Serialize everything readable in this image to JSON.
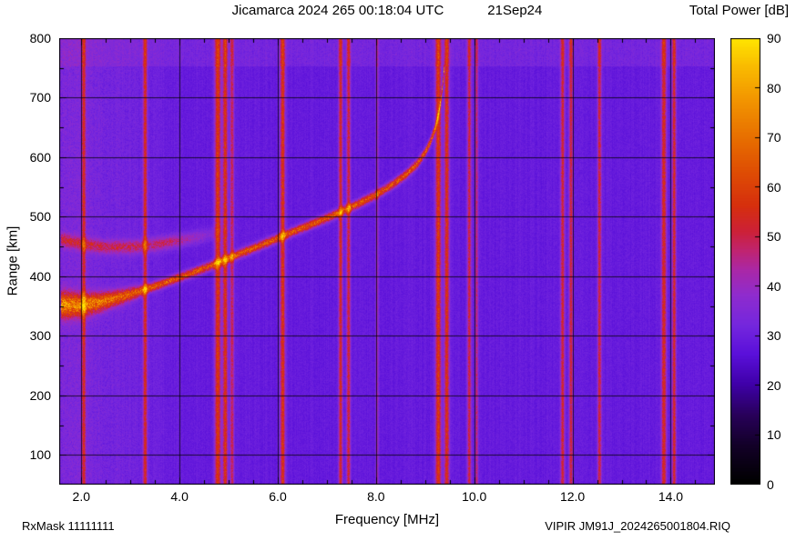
{
  "header": {
    "title": "Jicamarca 2024 265 00:18:04 UTC",
    "date": "21Sep24",
    "colorbar_title": "Total Power [dB]"
  },
  "footer": {
    "rxmask": "RxMask 11111111",
    "file": "VIPIR  JM91J_2024265001804.RIQ"
  },
  "chart_data": {
    "type": "heatmap",
    "title": "Jicamarca 2024 265 00:18:04 UTC",
    "date_label": "21Sep24",
    "xlabel": "Frequency [MHz]",
    "ylabel": "Range [km]",
    "xlim": [
      1.55,
      14.9
    ],
    "ylim": [
      50,
      800
    ],
    "x_major_ticks": [
      2,
      4,
      6,
      8,
      10,
      12,
      14
    ],
    "x_tick_labels": [
      "2.0",
      "4.0",
      "6.0",
      "8.0",
      "10.0",
      "12.0",
      "14.0"
    ],
    "x_minor_step": 0.5,
    "y_major_ticks": [
      100,
      200,
      300,
      400,
      500,
      600,
      700,
      800
    ],
    "y_minor_step": 50,
    "grid": true,
    "colorbar": {
      "label": "Total Power [dB]",
      "min": 0,
      "max": 90,
      "ticks": [
        0,
        10,
        20,
        30,
        40,
        50,
        60,
        70,
        80,
        90
      ]
    },
    "palette": [
      {
        "db": 0,
        "color": "#000000"
      },
      {
        "db": 8,
        "color": "#14002a"
      },
      {
        "db": 14,
        "color": "#29005c"
      },
      {
        "db": 20,
        "color": "#3f00a8"
      },
      {
        "db": 26,
        "color": "#5a10da"
      },
      {
        "db": 32,
        "color": "#7527de"
      },
      {
        "db": 38,
        "color": "#8f2cce"
      },
      {
        "db": 43,
        "color": "#aa28a8"
      },
      {
        "db": 47,
        "color": "#c02470"
      },
      {
        "db": 51,
        "color": "#cd2136"
      },
      {
        "db": 56,
        "color": "#d62f0e"
      },
      {
        "db": 63,
        "color": "#df4e04"
      },
      {
        "db": 70,
        "color": "#e87000"
      },
      {
        "db": 77,
        "color": "#f29300"
      },
      {
        "db": 84,
        "color": "#f9ba00"
      },
      {
        "db": 90,
        "color": "#ffe600"
      }
    ],
    "noise_floor_db": 27,
    "lowfreq_noise": {
      "below_mhz": 4.3,
      "db_per_mhz": 2.2
    },
    "top_band": {
      "from_km": 752,
      "boost_db": 4
    },
    "rfi_lines": [
      {
        "mhz": 2.05,
        "width_mhz": 0.04,
        "peak_db": 49
      },
      {
        "mhz": 3.3,
        "width_mhz": 0.04,
        "peak_db": 52
      },
      {
        "mhz": 4.78,
        "width_mhz": 0.06,
        "peak_db": 56
      },
      {
        "mhz": 4.93,
        "width_mhz": 0.05,
        "peak_db": 55
      },
      {
        "mhz": 5.07,
        "width_mhz": 0.04,
        "peak_db": 48
      },
      {
        "mhz": 6.1,
        "width_mhz": 0.05,
        "peak_db": 55
      },
      {
        "mhz": 7.28,
        "width_mhz": 0.04,
        "peak_db": 52
      },
      {
        "mhz": 7.44,
        "width_mhz": 0.04,
        "peak_db": 51
      },
      {
        "mhz": 8.02,
        "width_mhz": 0.03,
        "peak_db": 40
      },
      {
        "mhz": 9.27,
        "width_mhz": 0.06,
        "peak_db": 56
      },
      {
        "mhz": 9.44,
        "width_mhz": 0.05,
        "peak_db": 54
      },
      {
        "mhz": 9.9,
        "width_mhz": 0.04,
        "peak_db": 50
      },
      {
        "mhz": 10.05,
        "width_mhz": 0.03,
        "peak_db": 46
      },
      {
        "mhz": 11.8,
        "width_mhz": 0.04,
        "peak_db": 52
      },
      {
        "mhz": 11.97,
        "width_mhz": 0.04,
        "peak_db": 50
      },
      {
        "mhz": 12.55,
        "width_mhz": 0.04,
        "peak_db": 49
      },
      {
        "mhz": 13.86,
        "width_mhz": 0.05,
        "peak_db": 53
      },
      {
        "mhz": 14.07,
        "width_mhz": 0.04,
        "peak_db": 52
      }
    ],
    "echo_traces": [
      {
        "name": "F-region echo main trace",
        "points": [
          [
            1.58,
            352
          ],
          [
            2.0,
            351
          ],
          [
            2.4,
            357
          ],
          [
            2.8,
            365
          ],
          [
            3.2,
            375
          ],
          [
            3.6,
            386
          ],
          [
            4.0,
            398
          ],
          [
            4.4,
            410
          ],
          [
            4.8,
            423
          ],
          [
            5.2,
            437
          ],
          [
            5.6,
            450
          ],
          [
            6.0,
            464
          ],
          [
            6.4,
            478
          ],
          [
            6.8,
            491
          ],
          [
            7.2,
            505
          ],
          [
            7.6,
            520
          ],
          [
            8.0,
            537
          ],
          [
            8.3,
            552
          ],
          [
            8.6,
            570
          ],
          [
            8.85,
            590
          ],
          [
            9.0,
            608
          ],
          [
            9.1,
            624
          ],
          [
            9.2,
            647
          ],
          [
            9.28,
            674
          ],
          [
            9.33,
            702
          ],
          [
            9.37,
            732
          ],
          [
            9.4,
            762
          ]
        ],
        "peak_db": 62,
        "half_width_km": 7,
        "thicken_below_mhz": 3.4,
        "thicken_rate_km_per_mhz": 8,
        "boost_below_mhz": 2.8,
        "boost_db": 7
      },
      {
        "name": "F-region echo upper trace",
        "points": [
          [
            1.58,
            462
          ],
          [
            2.0,
            454
          ],
          [
            2.5,
            449
          ],
          [
            3.0,
            449
          ],
          [
            3.5,
            453
          ],
          [
            4.0,
            460
          ],
          [
            4.5,
            468
          ],
          [
            5.0,
            477
          ]
        ],
        "peak_db": 45,
        "half_width_km": 11,
        "fade_start_mhz": 3.8,
        "fade_end_mhz": 5.1
      }
    ]
  }
}
